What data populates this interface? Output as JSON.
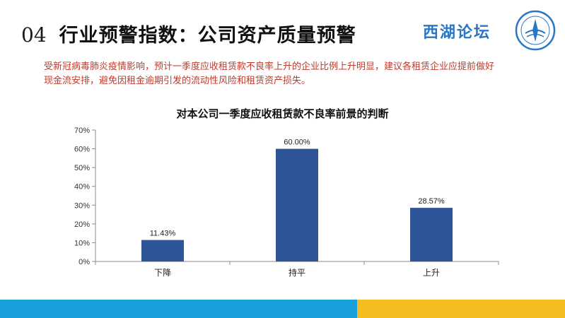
{
  "header": {
    "section_number": "04",
    "title": "行业预警指数：公司资产质量预警",
    "brand": "西湖论坛"
  },
  "description": "受新冠病毒肺炎疫情影响，预计一季度应收租赁款不良率上升的企业比例上升明显，建议各租赁企业应提前做好现金流安排，避免因租金逾期引发的流动性风险和租赁资产损失。",
  "colors": {
    "bar": "#2e5597",
    "description_text": "#c0392b",
    "stripe_blue": "#1aa0dc",
    "stripe_yellow": "#f5bd1f"
  },
  "chart_data": {
    "type": "bar",
    "title": "对本公司一季度应收租赁款不良率前景的判断",
    "categories": [
      "下降",
      "持平",
      "上升"
    ],
    "values": [
      11.43,
      60.0,
      28.57
    ],
    "value_labels": [
      "11.43%",
      "60.00%",
      "28.57%"
    ],
    "yticks": [
      "0%",
      "10%",
      "20%",
      "30%",
      "40%",
      "50%",
      "60%",
      "70%"
    ],
    "ylim": [
      0,
      70
    ],
    "grid": false,
    "legend": "none"
  }
}
